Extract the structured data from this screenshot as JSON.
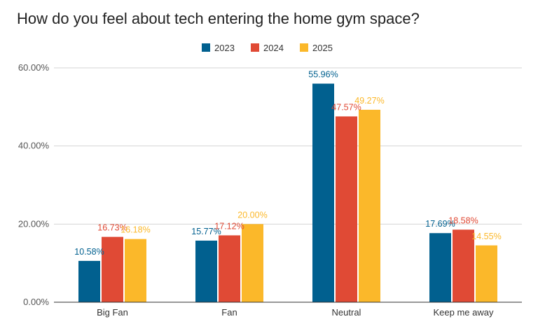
{
  "chart_data": {
    "type": "bar",
    "title": "How do you feel about tech entering the home gym space?",
    "categories": [
      "Big Fan",
      "Fan",
      "Neutral",
      "Keep me away"
    ],
    "series": [
      {
        "name": "2023",
        "color": "#01608f",
        "values": [
          10.58,
          15.77,
          55.96,
          17.69
        ],
        "labels": [
          "10.58%",
          "15.77%",
          "55.96%",
          "17.69%"
        ]
      },
      {
        "name": "2024",
        "color": "#e04a35",
        "values": [
          16.73,
          17.12,
          47.57,
          18.58
        ],
        "labels": [
          "16.73%",
          "17.12%",
          "47.57%",
          "18.58%"
        ]
      },
      {
        "name": "2025",
        "color": "#fbb82a",
        "values": [
          16.18,
          20.0,
          49.27,
          14.55
        ],
        "labels": [
          "16.18%",
          "20.00%",
          "49.27%",
          "14.55%"
        ]
      }
    ],
    "y_ticks": [
      {
        "value": 0,
        "label": "0.00%"
      },
      {
        "value": 20,
        "label": "20.00%"
      },
      {
        "value": 40,
        "label": "40.00%"
      },
      {
        "value": 60,
        "label": "60.00%"
      }
    ],
    "ylim": [
      0,
      60
    ],
    "grid": true,
    "legend": "top-center",
    "xlabel": "",
    "ylabel": ""
  }
}
